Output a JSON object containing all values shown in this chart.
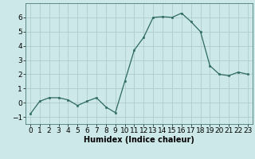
{
  "x": [
    0,
    1,
    2,
    3,
    4,
    5,
    6,
    7,
    8,
    9,
    10,
    11,
    12,
    13,
    14,
    15,
    16,
    17,
    18,
    19,
    20,
    21,
    22,
    23
  ],
  "y": [
    -0.8,
    0.1,
    0.35,
    0.35,
    0.2,
    -0.2,
    0.1,
    0.35,
    -0.3,
    -0.7,
    1.5,
    3.7,
    4.6,
    6.0,
    6.05,
    6.0,
    6.3,
    5.7,
    5.0,
    2.6,
    2.0,
    1.9,
    2.15,
    2.0
  ],
  "line_color": "#2e6b5e",
  "marker_color": "#2e6b5e",
  "bg_color": "#cce8e8",
  "grid_color": "#b0cccc",
  "xlabel": "Humidex (Indice chaleur)",
  "xlim": [
    -0.5,
    23.5
  ],
  "ylim": [
    -1.5,
    7.0
  ],
  "yticks": [
    -1,
    0,
    1,
    2,
    3,
    4,
    5,
    6
  ],
  "xlabel_fontsize": 7.0,
  "tick_fontsize": 6.5
}
